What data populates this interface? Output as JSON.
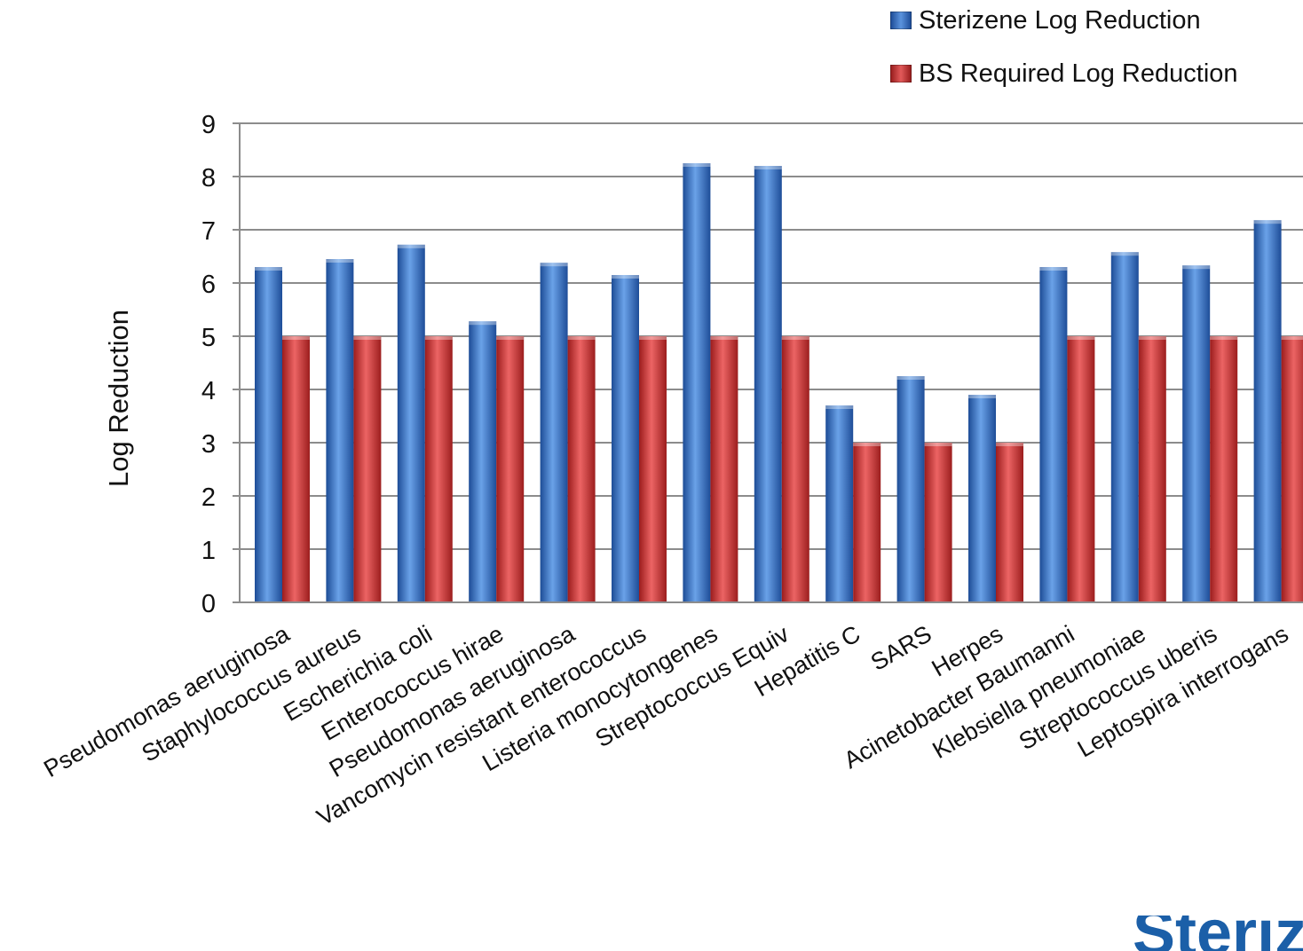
{
  "chart_data": {
    "type": "bar",
    "ylabel": "Log Reduction",
    "ylim": [
      0,
      9
    ],
    "yticks": [
      0,
      1,
      2,
      3,
      4,
      5,
      6,
      7,
      8,
      9
    ],
    "grid": true,
    "legend_position": "top-right",
    "categories": [
      "Pseudomonas aeruginosa",
      "Staphylococcus aureus",
      "Escherichia coli",
      "Enterococcus hirae",
      "Pseudomonas aeruginosa",
      "Vancomycin resistant enterococcus",
      "Listeria monocytongenes",
      "Streptococcus Equiv",
      "Hepatitis C",
      "SARS",
      "Herpes",
      "Acinetobacter Baumanni",
      "Klebsiella pneumoniae",
      "Streptococcus uberis",
      "Leptospira interrogans"
    ],
    "series": [
      {
        "name": "Sterizene Log Reduction",
        "color": "#3a73c4",
        "values": [
          6.3,
          6.45,
          6.72,
          5.28,
          6.38,
          6.15,
          8.25,
          8.2,
          3.7,
          4.25,
          3.9,
          6.3,
          6.58,
          6.33,
          7.18
        ]
      },
      {
        "name": "BS Required Log Reduction",
        "color": "#cc3a3a",
        "values": [
          5,
          5,
          5,
          5,
          5,
          5,
          5,
          5,
          3,
          3,
          3,
          5,
          5,
          5,
          5
        ]
      }
    ]
  },
  "logo_fragment": "Sterizene"
}
